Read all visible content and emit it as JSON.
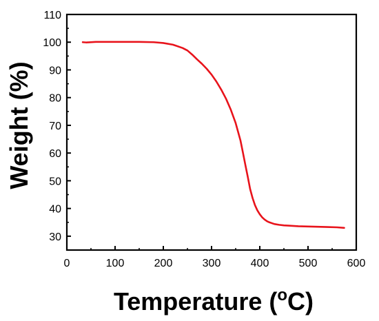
{
  "chart_data": {
    "type": "line",
    "xlabel": "Temperature",
    "xlabel_unit": {
      "open": " (",
      "superscript": "o",
      "unit": "C",
      "close": ")"
    },
    "ylabel": "Weight (%)",
    "xlim": [
      0,
      600
    ],
    "ylim": [
      25,
      110
    ],
    "x_ticks": [
      0,
      100,
      200,
      300,
      400,
      500,
      600
    ],
    "y_ticks": [
      30,
      40,
      50,
      60,
      70,
      80,
      90,
      100,
      110
    ],
    "grid": false,
    "legend": false,
    "series": [
      {
        "color": "#e8131b",
        "x": [
          33,
          40,
          60,
          100,
          150,
          180,
          200,
          220,
          240,
          250,
          260,
          270,
          280,
          290,
          300,
          310,
          320,
          330,
          340,
          350,
          360,
          365,
          370,
          375,
          380,
          385,
          390,
          395,
          400,
          405,
          410,
          415,
          420,
          430,
          440,
          450,
          460,
          480,
          500,
          520,
          540,
          560,
          575
        ],
        "y": [
          100.0,
          99.9,
          100.1,
          100.1,
          100.1,
          100.0,
          99.7,
          99.1,
          97.9,
          97.0,
          95.5,
          93.8,
          92.2,
          90.4,
          88.3,
          85.8,
          82.9,
          79.6,
          75.6,
          70.8,
          64.5,
          60.2,
          55.8,
          51.5,
          47.0,
          43.8,
          41.2,
          39.3,
          37.9,
          36.8,
          36.0,
          35.4,
          35.0,
          34.4,
          34.1,
          33.9,
          33.8,
          33.6,
          33.5,
          33.4,
          33.3,
          33.2,
          33.0
        ]
      }
    ]
  }
}
